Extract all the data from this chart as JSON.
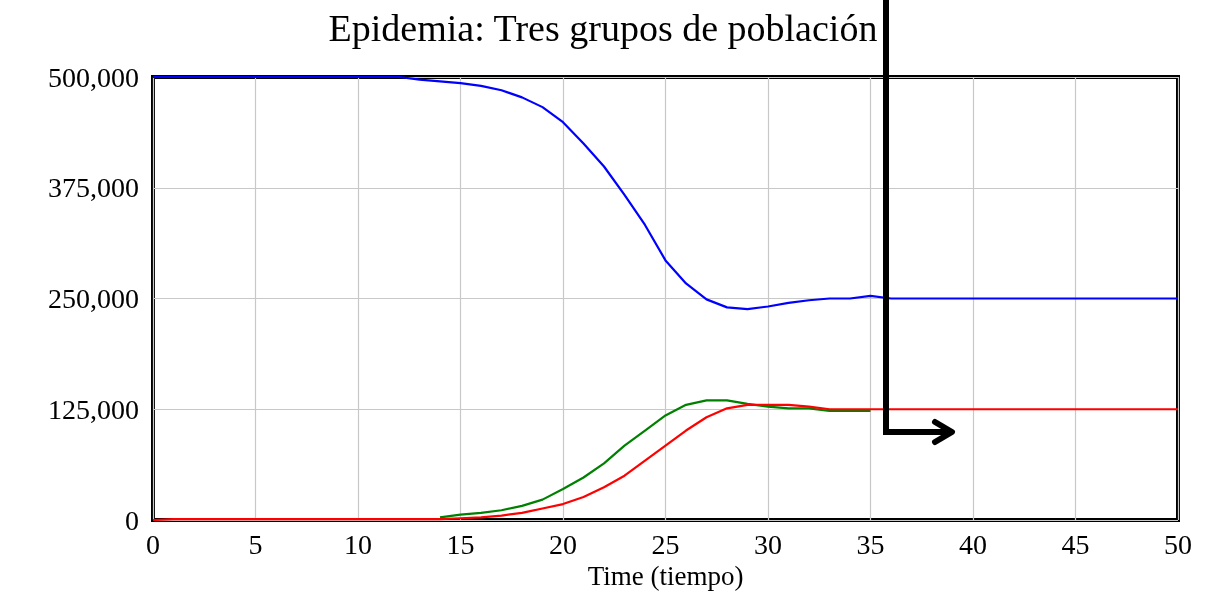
{
  "chart_data": {
    "type": "line",
    "title": "Epidemia: Tres grupos de población",
    "xlabel": "Time (tiempo)",
    "x": [
      0,
      1,
      2,
      3,
      4,
      5,
      6,
      7,
      8,
      9,
      10,
      11,
      12,
      13,
      14,
      15,
      16,
      17,
      18,
      19,
      20,
      21,
      22,
      23,
      24,
      25,
      26,
      27,
      28,
      29,
      30,
      31,
      32,
      33,
      34,
      35,
      36,
      37,
      38,
      39,
      40,
      41,
      42,
      43,
      44,
      45,
      46,
      47,
      48,
      49,
      50
    ],
    "series": [
      {
        "color": "#0000ff",
        "values": [
          500000,
          500000,
          500000,
          500000,
          500000,
          500000,
          500000,
          500000,
          500000,
          500000,
          500000,
          500000,
          500000,
          497000,
          495000,
          493000,
          490000,
          485000,
          477000,
          466000,
          449000,
          425000,
          399000,
          367000,
          333000,
          293000,
          267000,
          249000,
          240000,
          238000,
          241000,
          245000,
          248000,
          250000,
          250000,
          253000,
          250000,
          250000,
          250000,
          250000,
          250000,
          250000,
          250000,
          250000,
          250000,
          250000,
          250000,
          250000,
          250000,
          250000,
          250000
        ]
      },
      {
        "color": "#008000",
        "values": [
          null,
          null,
          null,
          null,
          null,
          null,
          null,
          null,
          null,
          null,
          null,
          null,
          null,
          null,
          3000,
          6000,
          8000,
          11000,
          16000,
          23000,
          35000,
          48000,
          64000,
          84000,
          101000,
          118000,
          130000,
          135000,
          135000,
          131000,
          128000,
          126000,
          126000,
          123000,
          123000,
          123000,
          null,
          null,
          null,
          null,
          null,
          null,
          null,
          null,
          null,
          null,
          null,
          null,
          null,
          null,
          null
        ]
      },
      {
        "color": "#ff0000",
        "values": [
          0,
          1000,
          1000,
          1000,
          1000,
          1000,
          1000,
          1000,
          1000,
          1000,
          1000,
          1000,
          1000,
          1000,
          1000,
          2000,
          3000,
          5000,
          8000,
          13000,
          18000,
          26000,
          37000,
          50000,
          67000,
          84000,
          101000,
          116000,
          126000,
          130000,
          130000,
          130000,
          128000,
          125000,
          125000,
          125000,
          125000,
          125000,
          125000,
          125000,
          125000,
          125000,
          125000,
          125000,
          125000,
          125000,
          125000,
          125000,
          125000,
          125000,
          125000
        ]
      }
    ],
    "xlim": [
      0,
      50
    ],
    "xticks": [
      0,
      5,
      10,
      15,
      20,
      25,
      30,
      35,
      40,
      45,
      50
    ],
    "ylim": [
      0,
      500000
    ],
    "yticks": [
      {
        "value": 0,
        "label": "0"
      },
      {
        "value": 125000,
        "label": "125,000"
      },
      {
        "value": 250000,
        "label": "250,000"
      },
      {
        "value": 375000,
        "label": "375,000"
      },
      {
        "value": 500000,
        "label": "500,000"
      }
    ],
    "grid": true,
    "marker": "none",
    "line_style": "solid"
  }
}
